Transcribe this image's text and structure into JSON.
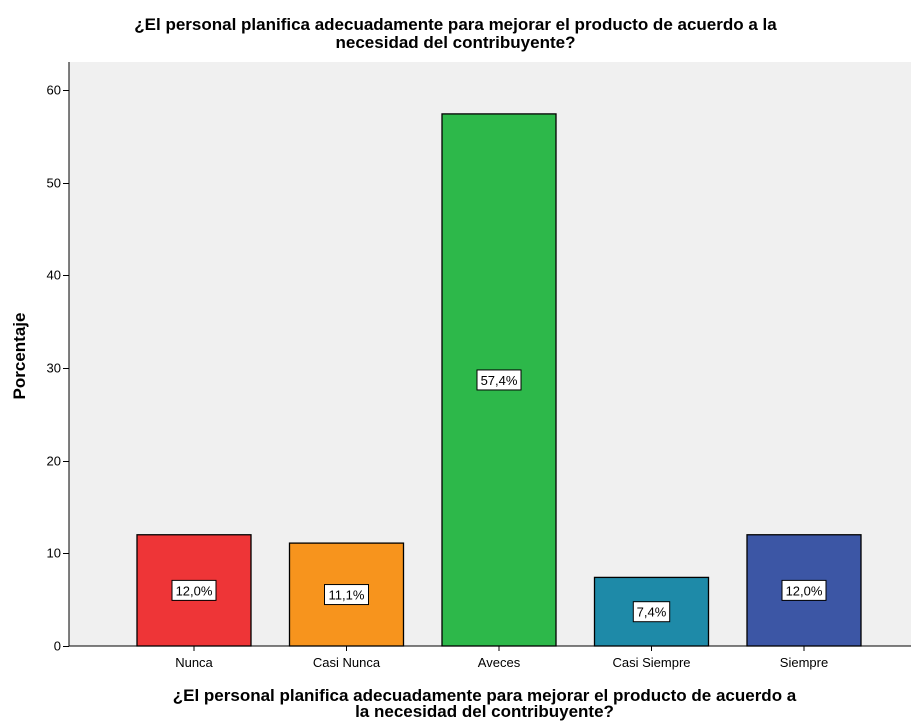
{
  "chart_data": {
    "type": "bar",
    "title_lines": [
      "¿El personal planifica adecuadamente para mejorar el producto de acuerdo a la",
      "necesidad del contribuyente?"
    ],
    "xlabel_lines": [
      "¿El personal planifica adecuadamente para mejorar el producto de acuerdo a",
      "la necesidad del contribuyente?"
    ],
    "ylabel": "Porcentaje",
    "categories": [
      "Nunca",
      "Casi Nunca",
      "Aveces",
      "Casi Siempre",
      "Siempre"
    ],
    "values": [
      12.0,
      11.1,
      57.4,
      7.4,
      12.0
    ],
    "data_labels": [
      "12,0%",
      "11,1%",
      "57,4%",
      "7,4%",
      "12,0%"
    ],
    "colors": [
      "#ee3537",
      "#f7941d",
      "#2db84a",
      "#1e8aa8",
      "#3c56a5"
    ],
    "ylim": [
      0,
      63
    ],
    "yticks": [
      0,
      10,
      20,
      30,
      40,
      50,
      60
    ],
    "plot_background": "#f0f0f0",
    "grid": false,
    "legend": "none"
  }
}
